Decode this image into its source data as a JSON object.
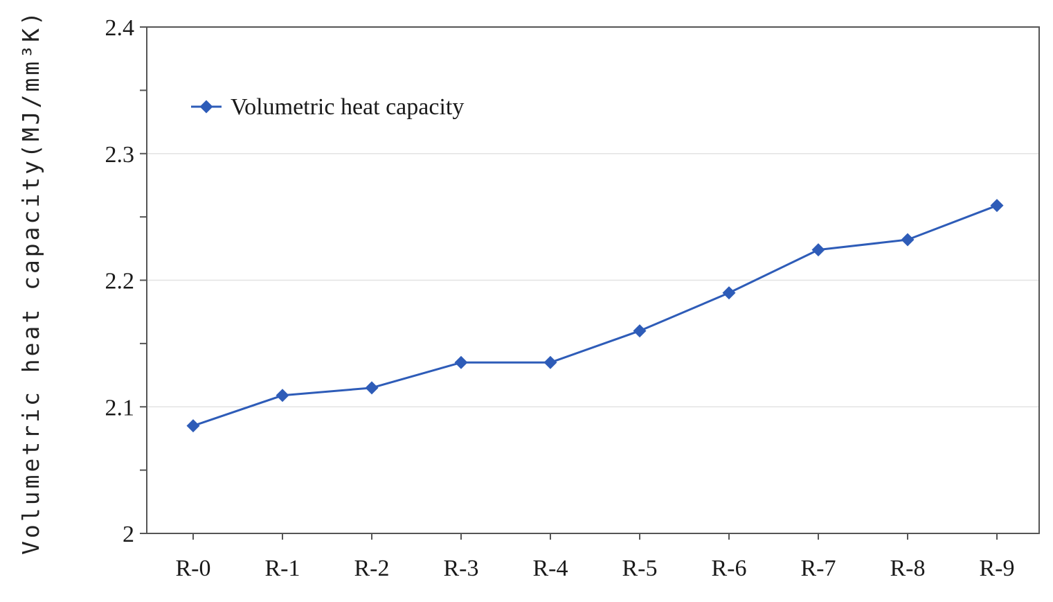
{
  "chart_data": {
    "type": "line",
    "title": "",
    "xlabel": "",
    "ylabel": "Volumetric heat capacity(MJ/mm³K)",
    "categories": [
      "R-0",
      "R-1",
      "R-2",
      "R-3",
      "R-4",
      "R-5",
      "R-6",
      "R-7",
      "R-8",
      "R-9"
    ],
    "series": [
      {
        "name": "Volumetric heat capacity",
        "values": [
          2.085,
          2.109,
          2.115,
          2.135,
          2.135,
          2.16,
          2.19,
          2.224,
          2.232,
          2.259
        ],
        "color": "#2E5CB8",
        "marker": "diamond"
      }
    ],
    "ylim": [
      2.0,
      2.4
    ],
    "yticks": [
      2.0,
      2.1,
      2.2,
      2.3,
      2.4
    ],
    "ytick_labels": [
      "2",
      "2.1",
      "2.2",
      "2.3",
      "2.4"
    ],
    "y_minor_step": 0.05,
    "grid": true,
    "legend": "top-left"
  }
}
